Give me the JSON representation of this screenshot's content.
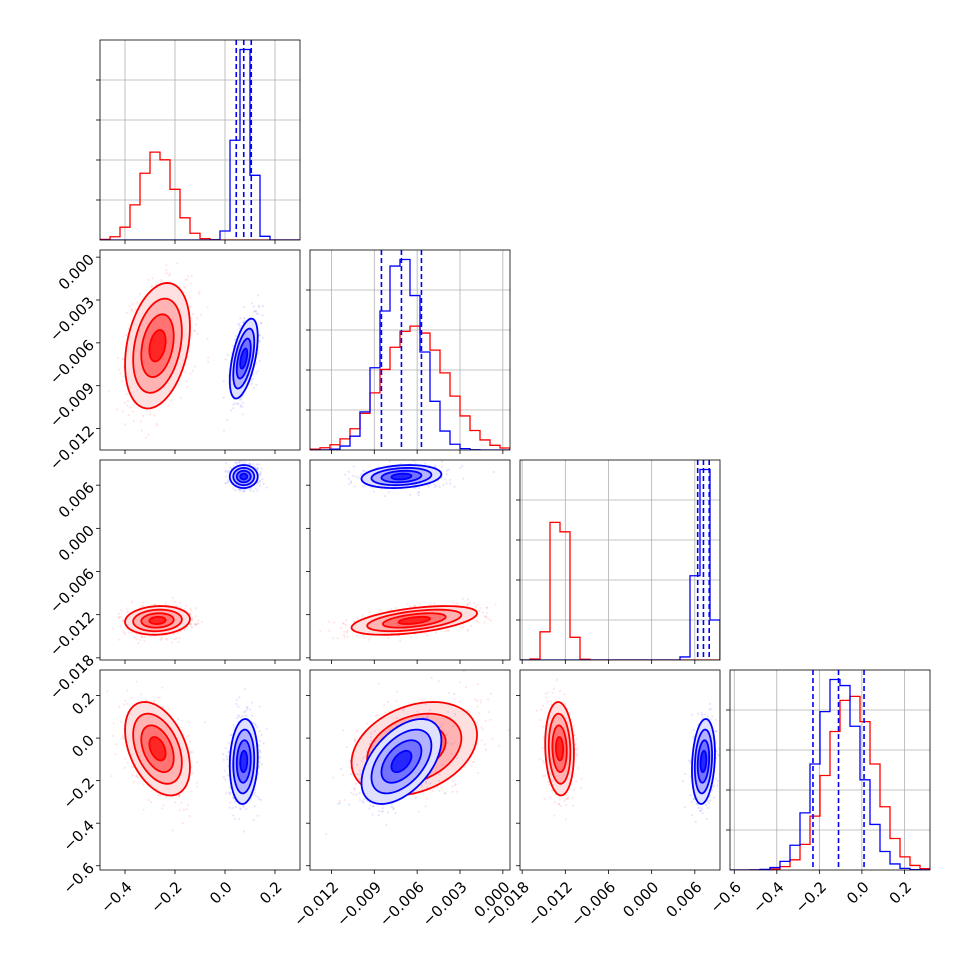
{
  "chart_data": {
    "type": "corner",
    "title": "",
    "parameters": [
      {
        "id": "p0",
        "axis_label": "",
        "range": [
          -0.5,
          0.3
        ],
        "ticks": [
          -0.4,
          -0.2,
          0.0,
          0.2
        ],
        "tick_labels": [
          "−0.4",
          "−0.2",
          "0.0",
          "0.2"
        ]
      },
      {
        "id": "p1",
        "axis_label": "",
        "range": [
          -0.0135,
          0.0005
        ],
        "ticks": [
          -0.012,
          -0.009,
          -0.006,
          -0.003,
          0.0
        ],
        "tick_labels": [
          "−0.012",
          "−0.009",
          "−0.006",
          "−0.003",
          "0.000"
        ]
      },
      {
        "id": "p2",
        "axis_label": "",
        "range": [
          -0.0183,
          0.0095
        ],
        "ticks": [
          -0.018,
          -0.012,
          -0.006,
          0.0,
          0.006
        ],
        "tick_labels": [
          "−0.018",
          "−0.012",
          "−0.006",
          "0.000",
          "0.006"
        ]
      },
      {
        "id": "p3",
        "axis_label": "",
        "range": [
          -0.62,
          0.32
        ],
        "ticks": [
          -0.6,
          -0.4,
          -0.2,
          0.0,
          0.2
        ],
        "tick_labels": [
          "−0.6",
          "−0.4",
          "−0.2",
          "0.0",
          "0.2"
        ]
      }
    ],
    "series": [
      {
        "color": "#ff0000",
        "mean": [
          -0.27,
          -0.0062,
          -0.0128,
          -0.05
        ],
        "sd": [
          0.065,
          0.0022,
          0.001,
          0.11
        ],
        "corr": [
          [
            1,
            0.3,
            0.1,
            -0.4
          ],
          [
            0.3,
            1,
            0.5,
            0.3
          ],
          [
            0.1,
            0.5,
            1,
            -0.1
          ],
          [
            -0.4,
            0.3,
            -0.1,
            1
          ]
        ],
        "quantiles": null
      },
      {
        "color": "#0000ff",
        "mean": [
          0.075,
          -0.0071,
          0.0072,
          -0.11
        ],
        "sd": [
          0.028,
          0.0014,
          0.0008,
          0.1
        ],
        "corr": [
          [
            1,
            0.55,
            0.0,
            0.1
          ],
          [
            0.55,
            1,
            0.2,
            0.5
          ],
          [
            0.0,
            0.2,
            1,
            0.2
          ],
          [
            0.1,
            0.5,
            0.2,
            1
          ]
        ],
        "quantiles": [
          [
            0.045,
            0.075,
            0.105
          ],
          [
            -0.0085,
            -0.0071,
            -0.0057
          ],
          [
            0.0064,
            0.0072,
            0.008
          ],
          [
            -0.23,
            -0.11,
            0.01
          ]
        ]
      }
    ],
    "contour_levels": [
      0.118,
      0.393,
      0.675,
      0.864
    ],
    "grid": true,
    "legend": "none"
  }
}
